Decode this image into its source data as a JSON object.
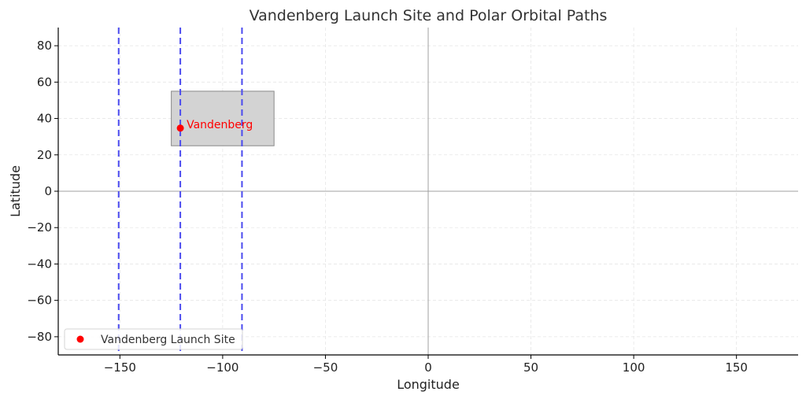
{
  "chart_data": {
    "type": "scatter",
    "title": "Vandenberg Launch Site and Polar Orbital Paths",
    "xlabel": "Longitude",
    "ylabel": "Latitude",
    "xlim": [
      -180,
      180
    ],
    "ylim": [
      -90,
      90
    ],
    "xticks": [
      -150,
      -100,
      -50,
      0,
      50,
      100,
      150
    ],
    "yticks": [
      -80,
      -60,
      -40,
      -20,
      0,
      20,
      40,
      60,
      80
    ],
    "grid": true,
    "reference_lines": {
      "x": 0,
      "y": 0,
      "color": "#a0a0a0"
    },
    "orbital_paths": {
      "longitudes": [
        -150.6,
        -120.6,
        -90.6
      ],
      "color": "#4b4bef",
      "style": "dashed"
    },
    "highlight_region": {
      "lon_range": [
        -125,
        -75
      ],
      "lat_range": [
        25,
        55
      ],
      "color": "#d3d3d3"
    },
    "points": [
      {
        "name": "Vandenberg Launch Site",
        "label": "Vandenberg",
        "x": -120.6,
        "y": 34.7,
        "color": "#ff0000"
      }
    ],
    "legend": {
      "position": "lower-left",
      "entries": [
        "Vandenberg Launch Site"
      ]
    }
  }
}
